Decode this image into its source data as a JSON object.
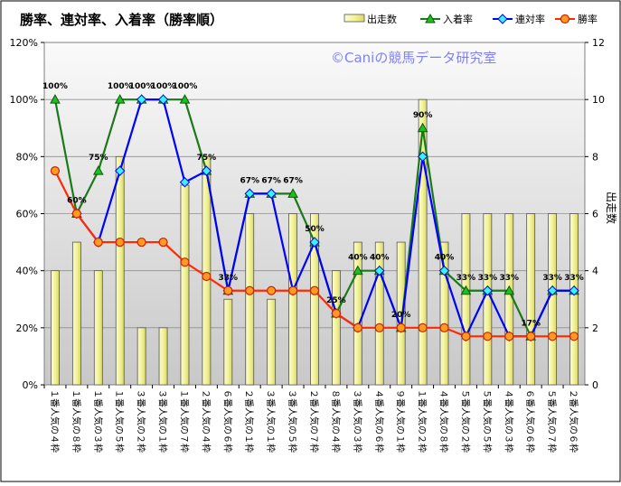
{
  "chart_data": {
    "type": "bar",
    "title": "勝率、連対率、入着率（勝率順）",
    "watermark": "©Caniの競馬データ研究室",
    "y2label": "出走数",
    "categories": [
      "１番人気の４枠",
      "１番人気の８枠",
      "１番人気の３枠",
      "１番人気の５枠",
      "３番人気の２枠",
      "３番人気の１枠",
      "１番人気の７枠",
      "２番人気の４枠",
      "６番人気の６枠",
      "２番人気の１枠",
      "３番人気の１枠",
      "３番人気の５枠",
      "２番人気の７枠",
      "８番人気の４枠",
      "３番人気の３枠",
      "４番人気の６枠",
      "９番人気の１枠",
      "１番人気の２枠",
      "４番人気の８枠",
      "５番人気の２枠",
      "５番人気の５枠",
      "４番人気の３枠",
      "６番人気の６枠",
      "５番人気の７枠",
      "２番人気の６枠"
    ],
    "ylim": [
      0,
      120
    ],
    "y2lim": [
      0,
      12
    ],
    "yticks": [
      "0%",
      "20%",
      "40%",
      "60%",
      "80%",
      "100%",
      "120%"
    ],
    "y2ticks": [
      "0",
      "2",
      "4",
      "6",
      "8",
      "10",
      "12"
    ],
    "legend_position": "top-right",
    "grid": true,
    "series": [
      {
        "name": "出走数",
        "kind": "bar",
        "axis": "right",
        "color": "#f0f0a0",
        "values": [
          4,
          5,
          4,
          8,
          2,
          2,
          7,
          8,
          3,
          6,
          3,
          6,
          6,
          4,
          5,
          5,
          5,
          10,
          5,
          6,
          6,
          6,
          6,
          6,
          6
        ]
      },
      {
        "name": "入着率",
        "kind": "line",
        "axis": "left",
        "color": "#1a7a1a",
        "marker": "triangle",
        "values": [
          100,
          60,
          75,
          100,
          100,
          100,
          100,
          75,
          33,
          67,
          67,
          67,
          50,
          25,
          40,
          40,
          20,
          90,
          40,
          33,
          33,
          33,
          17,
          33,
          33
        ]
      },
      {
        "name": "連対率",
        "kind": "line",
        "axis": "left",
        "color": "#0000ff",
        "marker": "diamond",
        "values": [
          null,
          60,
          50,
          75,
          100,
          100,
          71,
          75,
          33,
          67,
          67,
          33,
          50,
          25,
          20,
          40,
          20,
          80,
          40,
          17,
          33,
          17,
          17,
          33,
          33
        ]
      },
      {
        "name": "勝率",
        "kind": "line",
        "axis": "left",
        "color": "#ff2a00",
        "marker": "circle",
        "values": [
          75,
          60,
          50,
          50,
          50,
          50,
          43,
          38,
          33,
          33,
          33,
          33,
          33,
          25,
          20,
          20,
          20,
          20,
          20,
          17,
          17,
          17,
          17,
          17,
          17
        ]
      }
    ],
    "data_labels": [
      "100%",
      "60%",
      "75%",
      "100%",
      "100%",
      "100%",
      "100%",
      "75%",
      "33%",
      "67%",
      "67%",
      "67%",
      "50%",
      "25%",
      "40%",
      "40%",
      "20%",
      "90%",
      "40%",
      "33%",
      "33%",
      "33%",
      "17%",
      "33%",
      "33%"
    ]
  }
}
